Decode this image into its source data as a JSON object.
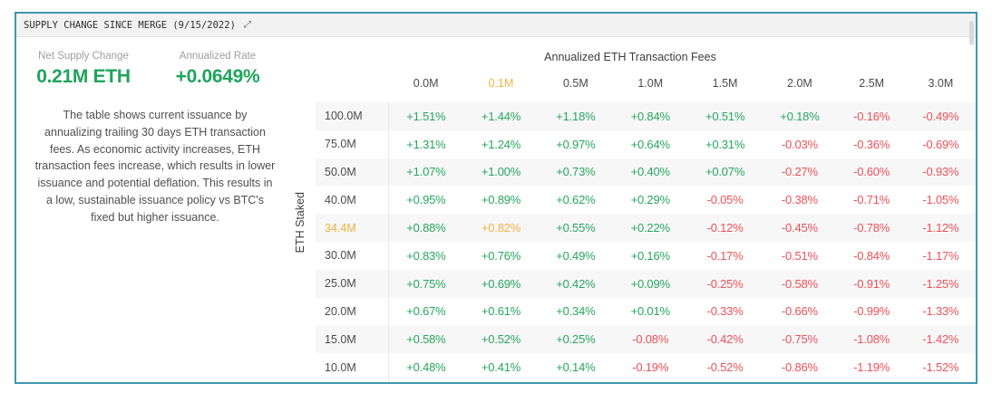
{
  "widget": {
    "title": "SUPPLY CHANGE SINCE MERGE (9/15/2022)",
    "collapse_icon": "⤢"
  },
  "summary": {
    "stats": [
      {
        "label": "Net Supply Change",
        "value": "0.21M ETH"
      },
      {
        "label": "Annualized Rate",
        "value": "+0.0649%"
      }
    ],
    "description": "The table shows current issuance by annualizing trailing 30 days ETH transaction fees. As economic activity increases, ETH transaction fees increase, which results in lower issuance and potential deflation. This results in a low, sustainable issuance policy vs BTC's fixed but higher issuance."
  },
  "chart_data": {
    "type": "table",
    "title": "Annualized ETH Transaction Fees",
    "xlabel": "Annualized ETH Transaction Fees",
    "ylabel": "ETH Staked",
    "columns": [
      "0.0M",
      "0.1M",
      "0.5M",
      "1.0M",
      "1.5M",
      "2.0M",
      "2.5M",
      "3.0M"
    ],
    "rows": [
      "100.0M",
      "75.0M",
      "50.0M",
      "40.0M",
      "34.4M",
      "30.0M",
      "25.0M",
      "20.0M",
      "15.0M",
      "10.0M"
    ],
    "highlighted_column": "0.1M",
    "highlighted_row": "34.4M",
    "values": [
      [
        "+1.51%",
        "+1.44%",
        "+1.18%",
        "+0.84%",
        "+0.51%",
        "+0.18%",
        "-0.16%",
        "-0.49%"
      ],
      [
        "+1.31%",
        "+1.24%",
        "+0.97%",
        "+0.64%",
        "+0.31%",
        "-0.03%",
        "-0.36%",
        "-0.69%"
      ],
      [
        "+1.07%",
        "+1.00%",
        "+0.73%",
        "+0.40%",
        "+0.07%",
        "-0.27%",
        "-0.60%",
        "-0.93%"
      ],
      [
        "+0.95%",
        "+0.89%",
        "+0.62%",
        "+0.29%",
        "-0.05%",
        "-0.38%",
        "-0.71%",
        "-1.05%"
      ],
      [
        "+0.88%",
        "+0.82%",
        "+0.55%",
        "+0.22%",
        "-0.12%",
        "-0.45%",
        "-0.78%",
        "-1.12%"
      ],
      [
        "+0.83%",
        "+0.76%",
        "+0.49%",
        "+0.16%",
        "-0.17%",
        "-0.51%",
        "-0.84%",
        "-1.17%"
      ],
      [
        "+0.75%",
        "+0.69%",
        "+0.42%",
        "+0.09%",
        "-0.25%",
        "-0.58%",
        "-0.91%",
        "-1.25%"
      ],
      [
        "+0.67%",
        "+0.61%",
        "+0.34%",
        "+0.01%",
        "-0.33%",
        "-0.66%",
        "-0.99%",
        "-1.33%"
      ],
      [
        "+0.58%",
        "+0.52%",
        "+0.25%",
        "-0.08%",
        "-0.42%",
        "-0.75%",
        "-1.08%",
        "-1.42%"
      ],
      [
        "+0.48%",
        "+0.41%",
        "+0.14%",
        "-0.19%",
        "-0.52%",
        "-0.86%",
        "-1.19%",
        "-1.52%"
      ]
    ],
    "colors": {
      "positive": "#27a65d",
      "negative": "#ee5158",
      "highlight": "#f1b13f",
      "stat_green": "#1fa45b",
      "border_teal": "#3f96ae"
    },
    "layout": {
      "grid": false,
      "row_striping": true,
      "legend": "none"
    }
  }
}
